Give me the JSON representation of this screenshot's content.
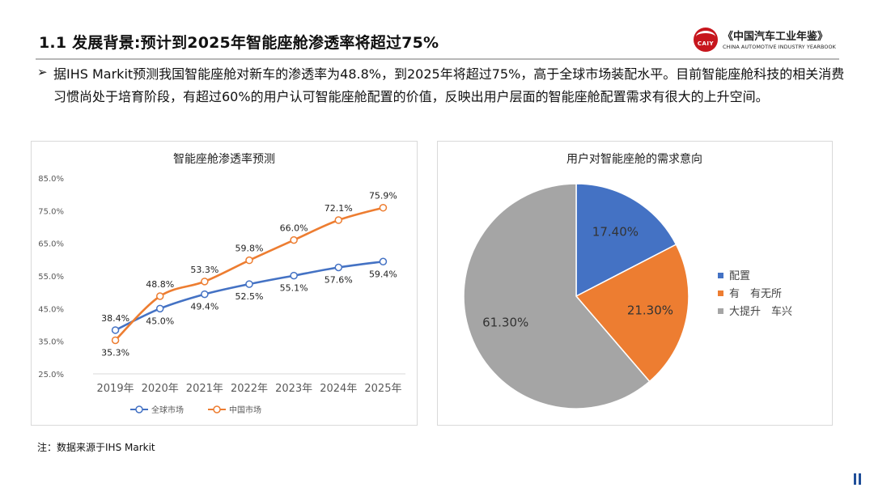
{
  "header": {
    "title": "1.1 发展背景:预计到2025年智能座舱渗透率将超过75%",
    "logo_cn": "《中国汽车工业年鉴》",
    "logo_en": "CHINA AUTOMOTIVE INDUSTRY YEARBOOK",
    "logo_badge": "CAIY"
  },
  "bullet": {
    "marker": "➢",
    "text": "据IHS Markit预测我国智能座舱对新车的渗透率为48.8%，到2025年将超过75%，高于全球市场装配水平。目前智能座舱科技的相关消费习惯尚处于培育阶段，有超过60%的用户认可智能座舱配置的价值，反映出用户层面的智能座舱配置需求有很大的上升空间。"
  },
  "note": "注：数据来源于IHS Markit",
  "colors": {
    "blue": "#4472c4",
    "orange": "#ed7d31",
    "gray": "#a5a5a5",
    "brand_red": "#c7161d"
  },
  "chart_data": [
    {
      "type": "line",
      "title": "智能座舱渗透率预测",
      "categories": [
        "2019年",
        "2020年",
        "2021年",
        "2022年",
        "2023年",
        "2024年",
        "2025年"
      ],
      "series": [
        {
          "name": "全球市场",
          "color": "#4472c4",
          "values": [
            38.4,
            45.0,
            49.4,
            52.5,
            55.1,
            57.6,
            59.4
          ],
          "labels": [
            "38.4%",
            "45.0%",
            "49.4%",
            "52.5%",
            "55.1%",
            "57.6%",
            "59.4%"
          ]
        },
        {
          "name": "中国市场",
          "color": "#ed7d31",
          "values": [
            35.3,
            48.8,
            53.3,
            59.8,
            66.0,
            72.1,
            75.9
          ],
          "labels": [
            "35.3%",
            "48.8%",
            "53.3%",
            "59.8%",
            "66.0%",
            "72.1%",
            "75.9%"
          ]
        }
      ],
      "ylim": [
        25,
        85
      ],
      "yticks": [
        "25.0%",
        "35.0%",
        "45.0%",
        "55.0%",
        "65.0%",
        "75.0%",
        "85.0%"
      ],
      "grid": false,
      "legend": "bottom"
    },
    {
      "type": "pie",
      "title": "用户对智能座舱的需求意向",
      "slices": [
        {
          "name": "配置",
          "value": 17.4,
          "label": "17.40%",
          "color": "#4472c4"
        },
        {
          "name": "有　有无所",
          "value": 21.3,
          "label": "21.30%",
          "color": "#ed7d31"
        },
        {
          "name": "大提升　车兴",
          "value": 61.3,
          "label": "61.30%",
          "color": "#a5a5a5"
        }
      ],
      "legend": "right"
    }
  ]
}
